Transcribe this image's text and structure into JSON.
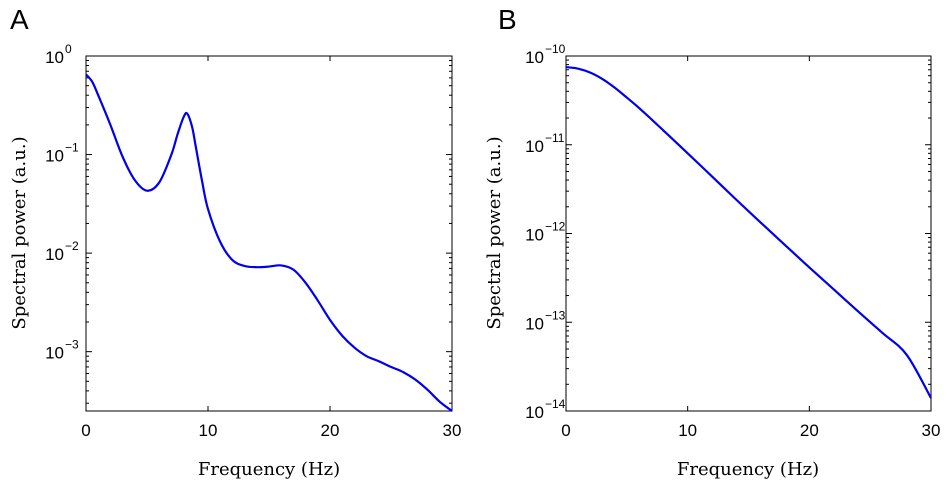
{
  "chart_data": [
    {
      "type": "line",
      "panel": "A",
      "xlabel": "Frequency (Hz)",
      "ylabel": "Spectral power (a.u.)",
      "xlim": [
        0,
        30
      ],
      "ylim": [
        0.00025,
        1
      ],
      "yscale": "log",
      "grid": false,
      "x_ticks": [
        0,
        10,
        20,
        30
      ],
      "y_ticks": [
        {
          "base": "10",
          "exp": "0",
          "value": 1
        },
        {
          "base": "10",
          "exp": "−1",
          "value": 0.1
        },
        {
          "base": "10",
          "exp": "−2",
          "value": 0.01
        },
        {
          "base": "10",
          "exp": "−3",
          "value": 0.001
        }
      ],
      "color": "#0000ee",
      "series": [
        {
          "x": [
            0,
            0.5,
            1,
            2,
            3,
            4,
            5,
            6,
            7,
            7.5,
            8,
            8.3,
            8.7,
            9,
            9.5,
            10,
            11,
            12,
            13,
            14,
            15,
            16,
            17,
            18,
            19,
            20,
            21,
            22,
            23,
            24,
            25,
            26,
            27,
            28,
            29,
            30
          ],
          "y": [
            0.65,
            0.55,
            0.4,
            0.2,
            0.095,
            0.055,
            0.043,
            0.052,
            0.1,
            0.16,
            0.24,
            0.26,
            0.19,
            0.12,
            0.055,
            0.028,
            0.013,
            0.0085,
            0.0074,
            0.0072,
            0.0073,
            0.0075,
            0.0068,
            0.005,
            0.0033,
            0.0021,
            0.00145,
            0.0011,
            0.0009,
            0.0008,
            0.0007,
            0.00062,
            0.00052,
            0.00041,
            0.00031,
            0.00025
          ]
        }
      ]
    },
    {
      "type": "line",
      "panel": "B",
      "xlabel": "Frequency (Hz)",
      "ylabel": "Spectral power (a.u.)",
      "xlim": [
        0,
        30
      ],
      "ylim": [
        1e-14,
        1e-10
      ],
      "yscale": "log",
      "grid": false,
      "x_ticks": [
        0,
        10,
        20,
        30
      ],
      "y_ticks": [
        {
          "base": "10",
          "exp": "−10",
          "value": 1e-10
        },
        {
          "base": "10",
          "exp": "−11",
          "value": 1e-11
        },
        {
          "base": "10",
          "exp": "−12",
          "value": 1e-12
        },
        {
          "base": "10",
          "exp": "−13",
          "value": 1e-13
        },
        {
          "base": "10",
          "exp": "−14",
          "value": 1e-14
        }
      ],
      "color": "#0000ee",
      "series": [
        {
          "x": [
            0,
            1,
            2,
            3,
            4,
            5,
            6,
            7,
            8,
            9,
            10,
            12,
            14,
            16,
            18,
            20,
            22,
            24,
            26,
            28,
            30
          ],
          "y": [
            7.5e-11,
            7.2e-11,
            6.5e-11,
            5.5e-11,
            4.4e-11,
            3.4e-11,
            2.6e-11,
            1.95e-11,
            1.45e-11,
            1.08e-11,
            8e-12,
            4.4e-12,
            2.4e-12,
            1.33e-12,
            7.4e-13,
            4.15e-13,
            2.35e-13,
            1.33e-13,
            7.6e-14,
            4.3e-14,
            1.4e-14
          ]
        }
      ]
    }
  ]
}
